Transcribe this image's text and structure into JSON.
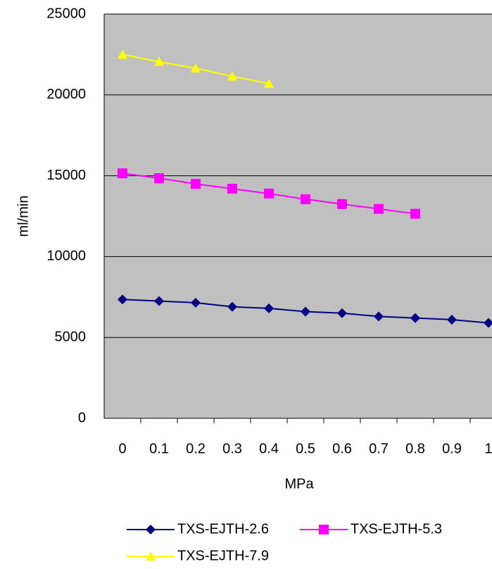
{
  "chart_data": {
    "type": "line",
    "x_label": "MPa",
    "y_label": "ml/min",
    "categories": [
      "0",
      "0.1",
      "0.2",
      "0.3",
      "0.4",
      "0.5",
      "0.6",
      "0.7",
      "0.8",
      "0.9",
      "1"
    ],
    "series": [
      {
        "name": "TXS-EJTH-2.6",
        "color": "#000080",
        "marker": "diamond",
        "values": [
          7350,
          7250,
          7150,
          6900,
          6800,
          6600,
          6500,
          6300,
          6200,
          6100,
          5900
        ]
      },
      {
        "name": "TXS-EJTH-5.3",
        "color": "#ff00ff",
        "marker": "square",
        "values": [
          15150,
          14850,
          14500,
          14200,
          13900,
          13550,
          13250,
          12950,
          12650,
          null,
          null
        ]
      },
      {
        "name": "TXS-EJTH-7.9",
        "color": "#ffff00",
        "marker": "triangle",
        "values": [
          22500,
          22050,
          21650,
          21150,
          20700,
          null,
          null,
          null,
          null,
          null,
          null
        ]
      }
    ],
    "ylim": [
      0,
      25000
    ],
    "yticks": [
      0,
      5000,
      10000,
      15000,
      20000,
      25000
    ],
    "grid": true
  }
}
